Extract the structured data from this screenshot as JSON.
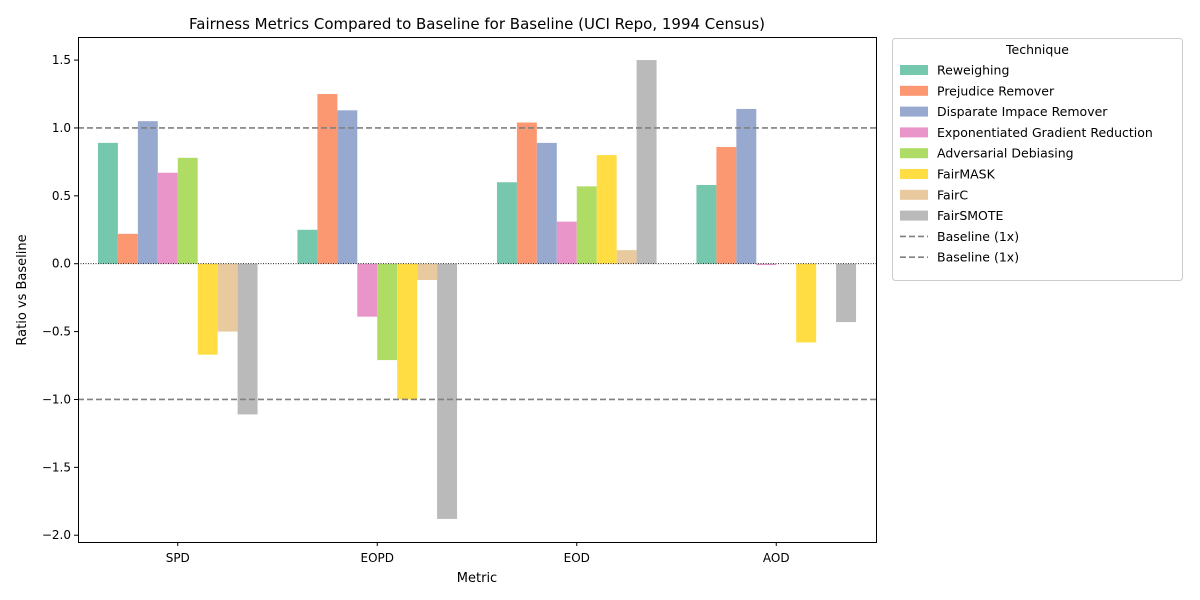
{
  "chart_data": {
    "type": "bar",
    "title": "Fairness Metrics Compared to Baseline for Baseline (UCI Repo, 1994 Census)",
    "xlabel": "Metric",
    "ylabel": "Ratio vs Baseline",
    "ylim": [
      -2.05,
      1.67
    ],
    "yticks": [
      -2.0,
      -1.5,
      -1.0,
      -0.5,
      0.0,
      0.5,
      1.0,
      1.5
    ],
    "ytick_labels": [
      "−2.0",
      "−1.5",
      "−1.0",
      "−0.5",
      "0.0",
      "0.5",
      "1.0",
      "1.5"
    ],
    "categories": [
      "SPD",
      "EOPD",
      "EOD",
      "AOD"
    ],
    "series": [
      {
        "name": "Reweighing",
        "color": "#66c2a5",
        "values": [
          0.89,
          0.25,
          0.6,
          0.58
        ]
      },
      {
        "name": "Prejudice Remover",
        "color": "#fc8d62",
        "values": [
          0.22,
          1.25,
          1.04,
          0.86
        ]
      },
      {
        "name": "Disparate Impace Remover",
        "color": "#8da0cb",
        "values": [
          1.05,
          1.13,
          0.89,
          1.14
        ]
      },
      {
        "name": "Exponentiated Gradient Reduction",
        "color": "#e78ac3",
        "values": [
          0.67,
          -0.39,
          0.31,
          -0.01
        ]
      },
      {
        "name": "Adversarial Debiasing",
        "color": "#a6d854",
        "values": [
          0.78,
          -0.71,
          0.57,
          0.0
        ]
      },
      {
        "name": "FairMASK",
        "color": "#ffd92f",
        "values": [
          -0.67,
          -1.0,
          0.8,
          -0.58
        ]
      },
      {
        "name": "FairC",
        "color": "#e5c494",
        "values": [
          -0.5,
          -0.12,
          0.1,
          0.0
        ]
      },
      {
        "name": "FairSMOTE",
        "color": "#b3b3b3",
        "values": [
          -1.11,
          -1.88,
          1.5,
          -0.43
        ]
      }
    ],
    "reference_lines": [
      {
        "name": "Baseline (1x)",
        "value": 1.0,
        "color": "#808080",
        "style": "dashed"
      },
      {
        "name": "Baseline (1x)",
        "value": -1.0,
        "color": "#808080",
        "style": "dashed"
      }
    ],
    "zero_line": {
      "value": 0.0,
      "color": "#000000",
      "style": "dotted"
    },
    "legend": {
      "title": "Technique",
      "placement": "outside-right-top"
    },
    "grid": false
  }
}
